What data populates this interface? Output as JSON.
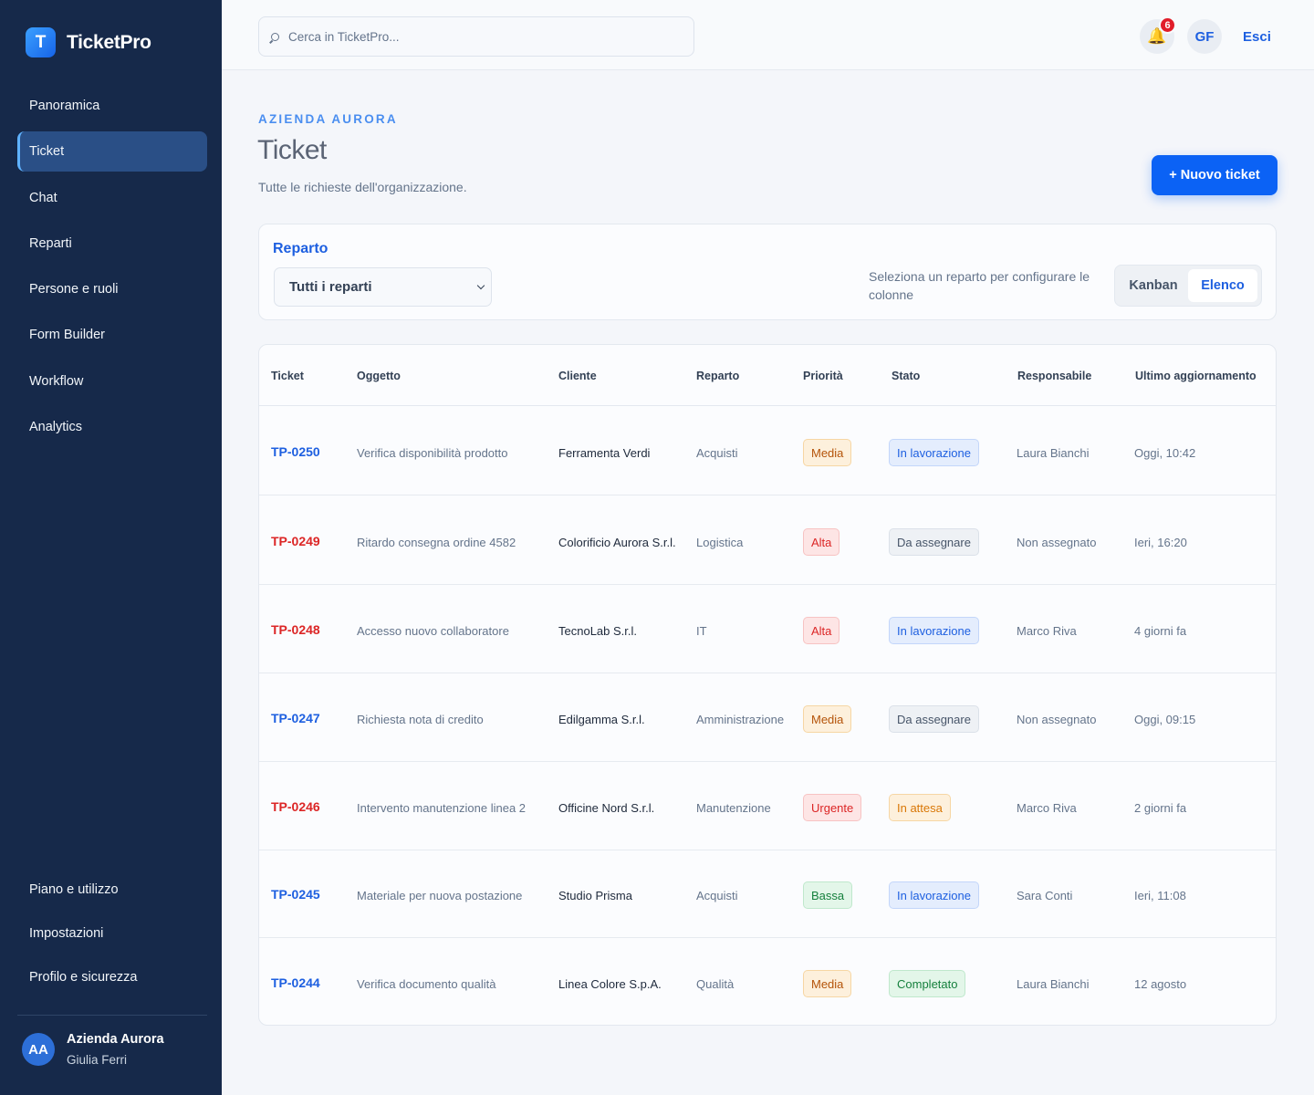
{
  "app": {
    "name": "TicketPro",
    "logo_letter": "T"
  },
  "sidebar": {
    "items": [
      {
        "label": "Panoramica",
        "active": false
      },
      {
        "label": "Ticket",
        "active": true
      },
      {
        "label": "Chat",
        "active": false
      },
      {
        "label": "Reparti",
        "active": false
      },
      {
        "label": "Persone e ruoli",
        "active": false
      },
      {
        "label": "Form Builder",
        "active": false
      },
      {
        "label": "Workflow",
        "active": false
      },
      {
        "label": "Analytics",
        "active": false
      }
    ],
    "bottom_items": [
      {
        "label": "Piano e utilizzo"
      },
      {
        "label": "Impostazioni"
      },
      {
        "label": "Profilo e sicurezza"
      }
    ],
    "profile": {
      "initials": "AA",
      "organization": "Azienda Aurora",
      "user": "Giulia Ferri"
    }
  },
  "topbar": {
    "search_placeholder": "Cerca in TicketPro...",
    "notifications_count": "6",
    "user_initials": "GF",
    "logout_label": "Esci"
  },
  "header": {
    "eyebrow": "AZIENDA AURORA",
    "title": "Ticket",
    "subtitle": "Tutte le richieste dell'organizzazione.",
    "new_button": "+ Nuovo ticket"
  },
  "filter": {
    "label": "Reparto",
    "selected": "Tutti i reparti",
    "hint": "Seleziona un reparto per configurare le colonne",
    "views": [
      {
        "label": "Kanban",
        "active": false
      },
      {
        "label": "Elenco",
        "active": true
      }
    ]
  },
  "table": {
    "columns": [
      "Ticket",
      "Oggetto",
      "Cliente",
      "Reparto",
      "Priorità",
      "Stato",
      "Responsabile",
      "Ultimo aggiornamento"
    ],
    "rows": [
      {
        "id": "TP-0250",
        "oggetto": "Verifica disponibilità prodotto",
        "cliente": "Ferramenta Verdi",
        "reparto": "Acquisti",
        "priorita": "Media",
        "stato": "In lavorazione",
        "responsabile": "Laura Bianchi",
        "aggiornamento": "Oggi, 10:42"
      },
      {
        "id": "TP-0249",
        "oggetto": "Ritardo consegna ordine 4582",
        "cliente": "Colorificio Aurora S.r.l.",
        "reparto": "Logistica",
        "priorita": "Alta",
        "stato": "Da assegnare",
        "responsabile": "Non assegnato",
        "aggiornamento": "Ieri, 16:20"
      },
      {
        "id": "TP-0248",
        "oggetto": "Accesso nuovo collaboratore",
        "cliente": "TecnoLab S.r.l.",
        "reparto": "IT",
        "priorita": "Alta",
        "stato": "In lavorazione",
        "responsabile": "Marco Riva",
        "aggiornamento": "4 giorni fa"
      },
      {
        "id": "TP-0247",
        "oggetto": "Richiesta nota di credito",
        "cliente": "Edilgamma S.r.l.",
        "reparto": "Amministrazione",
        "priorita": "Media",
        "stato": "Da assegnare",
        "responsabile": "Non assegnato",
        "aggiornamento": "Oggi, 09:15"
      },
      {
        "id": "TP-0246",
        "oggetto": "Intervento manutenzione linea 2",
        "cliente": "Officine Nord S.r.l.",
        "reparto": "Manutenzione",
        "priorita": "Urgente",
        "stato": "In attesa",
        "responsabile": "Marco Riva",
        "aggiornamento": "2 giorni fa"
      },
      {
        "id": "TP-0245",
        "oggetto": "Materiale per nuova postazione",
        "cliente": "Studio Prisma",
        "reparto": "Acquisti",
        "priorita": "Bassa",
        "stato": "In lavorazione",
        "responsabile": "Sara Conti",
        "aggiornamento": "Ieri, 11:08"
      },
      {
        "id": "TP-0244",
        "oggetto": "Verifica documento qualità",
        "cliente": "Linea Colore S.p.A.",
        "reparto": "Qualità",
        "priorita": "Media",
        "stato": "Completato",
        "responsabile": "Laura Bianchi",
        "aggiornamento": "12 agosto"
      }
    ]
  },
  "colors": {
    "sidebar_bg": "#16294a",
    "accent": "#1d5fe0",
    "primary_button": "#0b62f5",
    "danger": "#dc2626"
  }
}
